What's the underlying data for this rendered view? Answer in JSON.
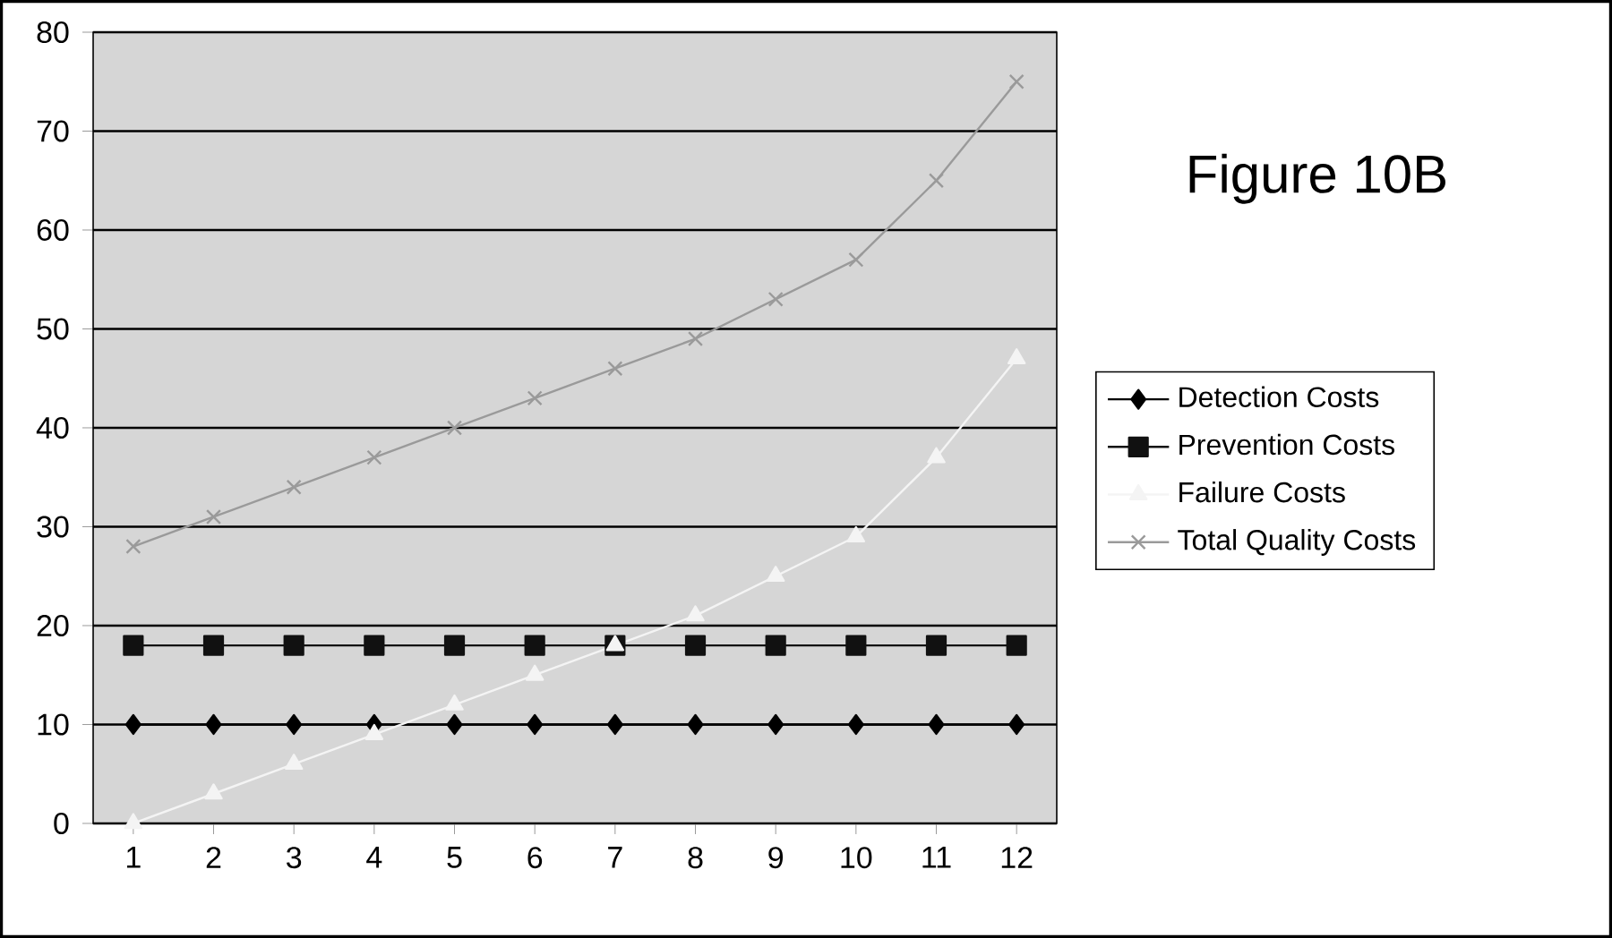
{
  "chart_data": {
    "type": "line",
    "title": "Figure 10B",
    "categories": [
      "1",
      "2",
      "3",
      "4",
      "5",
      "6",
      "7",
      "8",
      "9",
      "10",
      "11",
      "12"
    ],
    "series": [
      {
        "name": "Detection Costs",
        "color": "#000000",
        "marker": "diamond",
        "values": [
          10,
          10,
          10,
          10,
          10,
          10,
          10,
          10,
          10,
          10,
          10,
          10
        ]
      },
      {
        "name": "Prevention Costs",
        "color": "#111111",
        "marker": "square",
        "values": [
          18,
          18,
          18,
          18,
          18,
          18,
          18,
          18,
          18,
          18,
          18,
          18
        ]
      },
      {
        "name": "Failure Costs",
        "color": "#f4f4f4",
        "marker": "triangle",
        "values": [
          0,
          3,
          6,
          9,
          12,
          15,
          18,
          21,
          25,
          29,
          37,
          47
        ]
      },
      {
        "name": "Total Quality Costs",
        "color": "#9a9a9a",
        "marker": "cross",
        "values": [
          28,
          31,
          34,
          37,
          40,
          43,
          46,
          49,
          53,
          57,
          65,
          75
        ]
      }
    ],
    "ylim": [
      0,
      80
    ],
    "yticks": [
      0,
      10,
      20,
      30,
      40,
      50,
      60,
      70,
      80
    ],
    "grid": "y",
    "legend": "right"
  }
}
